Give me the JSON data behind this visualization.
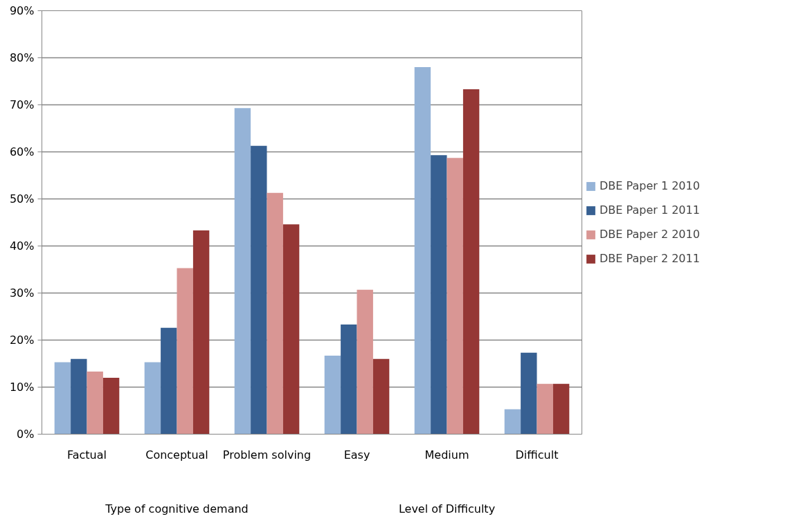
{
  "chart_data": {
    "type": "bar",
    "categories": [
      "Factual",
      "Conceptual",
      "Problem solving",
      "Easy",
      "Medium",
      "Difficult"
    ],
    "series": [
      {
        "name": "DBE Paper 1 2010",
        "color": "#95b3d7",
        "values": [
          15.3,
          15.3,
          69.3,
          16.7,
          78.0,
          5.3
        ]
      },
      {
        "name": "DBE Paper 1 2011",
        "color": "#376092",
        "values": [
          16.0,
          22.6,
          61.3,
          23.3,
          59.3,
          17.3
        ]
      },
      {
        "name": "DBE Paper 2 2010",
        "color": "#d99694",
        "values": [
          13.3,
          35.3,
          51.3,
          30.7,
          58.7,
          10.7
        ]
      },
      {
        "name": "DBE Paper 2 2011",
        "color": "#953735",
        "values": [
          12.0,
          43.3,
          44.6,
          16.0,
          73.3,
          10.7
        ]
      }
    ],
    "ylim": [
      0,
      90
    ],
    "yticks": [
      {
        "value": 0,
        "label": "0%"
      },
      {
        "value": 10,
        "label": "10%"
      },
      {
        "value": 20,
        "label": "20%"
      },
      {
        "value": 30,
        "label": "30%"
      },
      {
        "value": 40,
        "label": "40%"
      },
      {
        "value": 50,
        "label": "50%"
      },
      {
        "value": 60,
        "label": "60%"
      },
      {
        "value": 70,
        "label": "70%"
      },
      {
        "value": 80,
        "label": "80%"
      },
      {
        "value": 90,
        "label": "90%"
      }
    ],
    "annotations": [
      "Type of cognitive demand",
      "Level of Difficulty"
    ],
    "grid": "y",
    "legend": "right"
  }
}
